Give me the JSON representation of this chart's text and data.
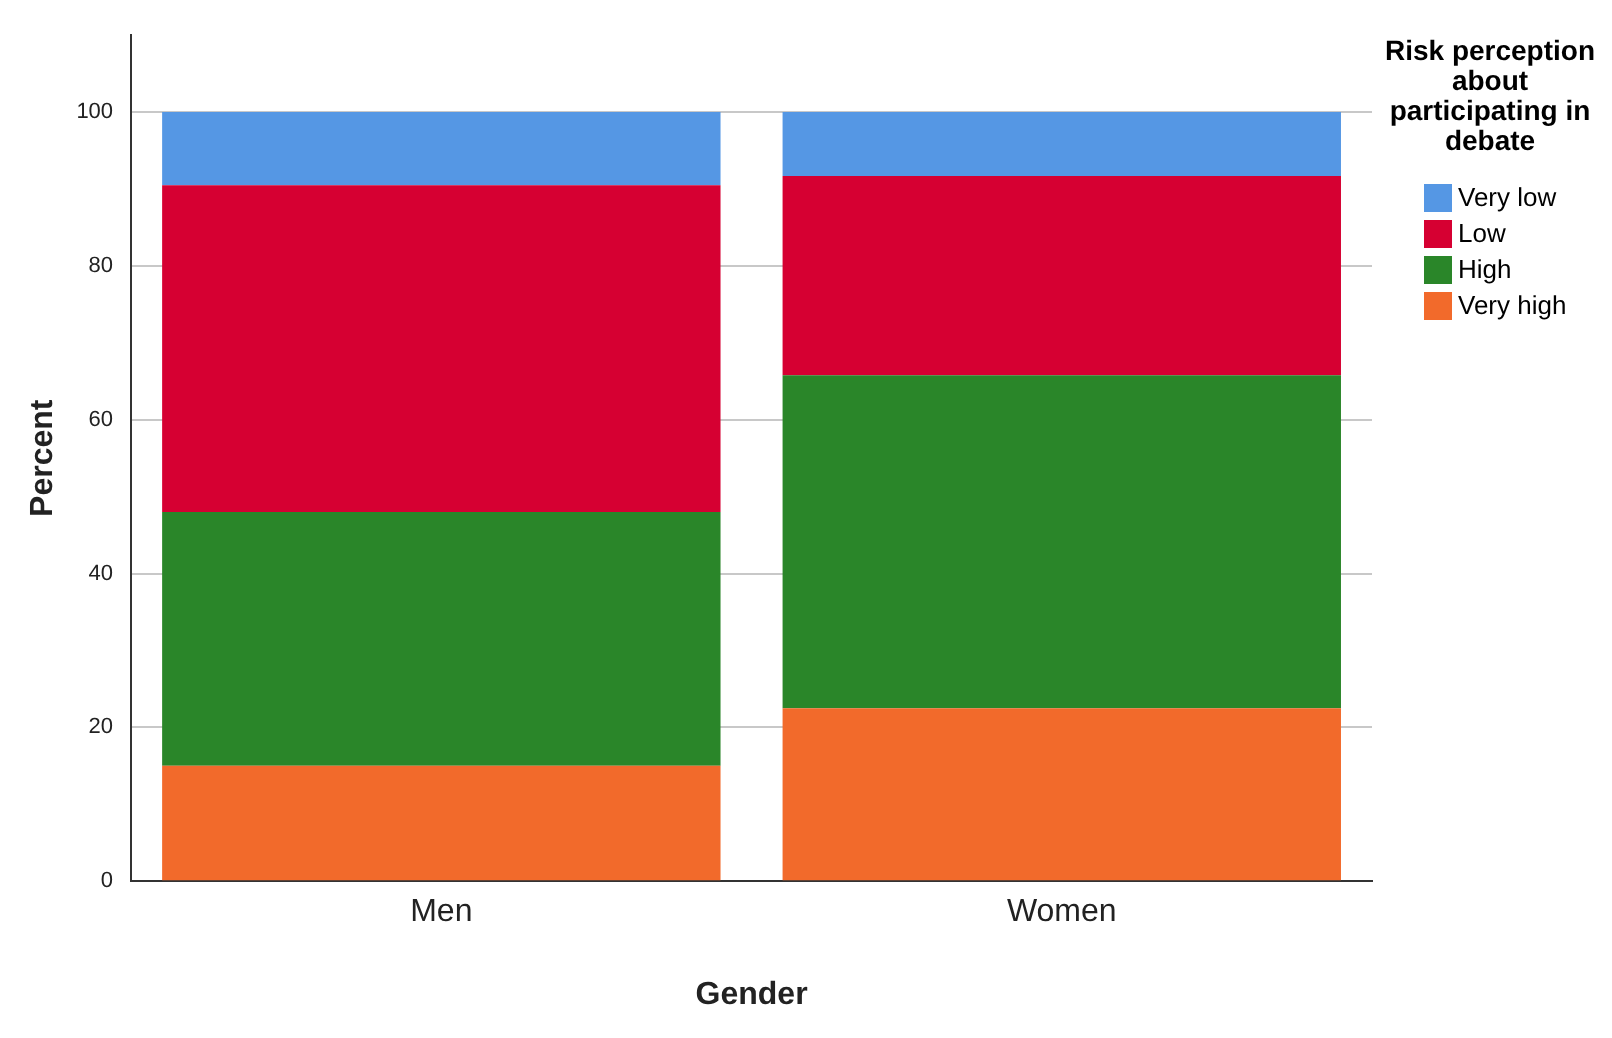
{
  "chart_data": {
    "type": "bar",
    "stacked": true,
    "categories": [
      "Men",
      "Women"
    ],
    "xlabel": "Gender",
    "ylabel": "Percent",
    "legend_title": "Risk perception about participating in debate",
    "legend": "right",
    "grid": "y",
    "ylim": [
      0,
      110
    ],
    "yticks": [
      0,
      20,
      40,
      60,
      80,
      100
    ],
    "series": [
      {
        "name": "Very high",
        "color": "#f26a2b",
        "values": [
          15,
          22.5
        ]
      },
      {
        "name": "High",
        "color": "#2a8629",
        "values": [
          33,
          43.3
        ]
      },
      {
        "name": "Low",
        "color": "#d60032",
        "values": [
          42.5,
          25.9
        ]
      },
      {
        "name": "Very low",
        "color": "#5597e4",
        "values": [
          9.5,
          8.3
        ]
      }
    ]
  }
}
